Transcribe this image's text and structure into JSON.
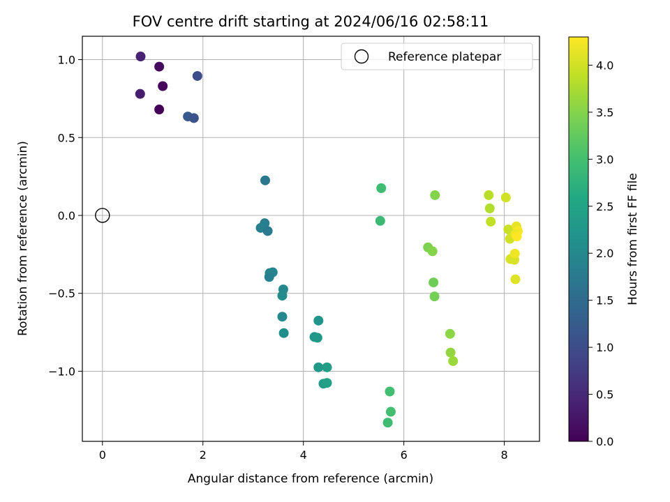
{
  "chart_data": {
    "type": "scatter",
    "title": "FOV centre drift starting at 2024/06/16 02:58:11",
    "xlabel": "Angular distance from reference (arcmin)",
    "ylabel": "Rotation from reference (arcmin)",
    "xlim": [
      -0.4,
      8.7
    ],
    "ylim": [
      -1.45,
      1.15
    ],
    "xticks": [
      0,
      2,
      4,
      6,
      8
    ],
    "yticks": [
      1.0,
      0.5,
      0.0,
      -0.5,
      -1.0
    ],
    "xtick_labels": [
      "0",
      "2",
      "4",
      "6",
      "8"
    ],
    "ytick_labels": [
      "1.0",
      "0.5",
      "0.0",
      "−0.5",
      "−1.0"
    ],
    "grid": true,
    "legend": {
      "placement": "upper-right",
      "entries": [
        "Reference platepar"
      ]
    },
    "reference_point": {
      "x": 0.0,
      "y": 0.0,
      "label": "Reference platepar"
    },
    "colorbar": {
      "label": "Hours from first FF file",
      "colormap": "viridis",
      "range": [
        0.0,
        4.3
      ],
      "ticks": [
        0.0,
        0.5,
        1.0,
        1.5,
        2.0,
        2.5,
        3.0,
        3.5,
        4.0
      ],
      "tick_labels": [
        "0.0",
        "0.5",
        "1.0",
        "1.5",
        "2.0",
        "2.5",
        "3.0",
        "3.5",
        "4.0"
      ]
    },
    "points": [
      {
        "x": 0.76,
        "y": 1.02,
        "hours": 0.4
      },
      {
        "x": 1.13,
        "y": 0.955,
        "hours": 0.12
      },
      {
        "x": 1.2,
        "y": 0.83,
        "hours": 0.08
      },
      {
        "x": 0.75,
        "y": 0.78,
        "hours": 0.35
      },
      {
        "x": 1.13,
        "y": 0.68,
        "hours": 0.02
      },
      {
        "x": 1.89,
        "y": 0.895,
        "hours": 1.0
      },
      {
        "x": 1.7,
        "y": 0.635,
        "hours": 1.2
      },
      {
        "x": 1.82,
        "y": 0.625,
        "hours": 1.1
      },
      {
        "x": 3.24,
        "y": 0.225,
        "hours": 1.7
      },
      {
        "x": 3.23,
        "y": -0.05,
        "hours": 1.8
      },
      {
        "x": 3.15,
        "y": -0.08,
        "hours": 1.85
      },
      {
        "x": 3.29,
        "y": -0.1,
        "hours": 1.75
      },
      {
        "x": 3.33,
        "y": -0.37,
        "hours": 1.9
      },
      {
        "x": 3.39,
        "y": -0.365,
        "hours": 1.95
      },
      {
        "x": 3.32,
        "y": -0.395,
        "hours": 1.85
      },
      {
        "x": 3.6,
        "y": -0.475,
        "hours": 2.0
      },
      {
        "x": 3.58,
        "y": -0.515,
        "hours": 2.05
      },
      {
        "x": 3.58,
        "y": -0.65,
        "hours": 2.0
      },
      {
        "x": 3.61,
        "y": -0.755,
        "hours": 2.1
      },
      {
        "x": 4.3,
        "y": -0.675,
        "hours": 2.2
      },
      {
        "x": 4.22,
        "y": -0.78,
        "hours": 2.25
      },
      {
        "x": 4.28,
        "y": -0.785,
        "hours": 2.3
      },
      {
        "x": 4.3,
        "y": -0.975,
        "hours": 2.3
      },
      {
        "x": 4.47,
        "y": -0.975,
        "hours": 2.4
      },
      {
        "x": 4.4,
        "y": -1.08,
        "hours": 2.35
      },
      {
        "x": 4.47,
        "y": -1.075,
        "hours": 2.45
      },
      {
        "x": 5.55,
        "y": 0.175,
        "hours": 2.95
      },
      {
        "x": 5.53,
        "y": -0.035,
        "hours": 2.9
      },
      {
        "x": 5.72,
        "y": -1.13,
        "hours": 3.0
      },
      {
        "x": 5.74,
        "y": -1.26,
        "hours": 3.0
      },
      {
        "x": 5.68,
        "y": -1.33,
        "hours": 2.95
      },
      {
        "x": 6.62,
        "y": 0.13,
        "hours": 3.5
      },
      {
        "x": 6.48,
        "y": -0.205,
        "hours": 3.45
      },
      {
        "x": 6.57,
        "y": -0.23,
        "hours": 3.5
      },
      {
        "x": 6.59,
        "y": -0.43,
        "hours": 3.35
      },
      {
        "x": 6.61,
        "y": -0.52,
        "hours": 3.4
      },
      {
        "x": 6.92,
        "y": -0.76,
        "hours": 3.55
      },
      {
        "x": 6.93,
        "y": -0.88,
        "hours": 3.6
      },
      {
        "x": 6.98,
        "y": -0.935,
        "hours": 3.65
      },
      {
        "x": 7.69,
        "y": 0.13,
        "hours": 3.85
      },
      {
        "x": 7.71,
        "y": 0.045,
        "hours": 3.8
      },
      {
        "x": 7.73,
        "y": -0.04,
        "hours": 3.9
      },
      {
        "x": 8.03,
        "y": 0.115,
        "hours": 4.0
      },
      {
        "x": 8.08,
        "y": -0.09,
        "hours": 3.95
      },
      {
        "x": 8.11,
        "y": -0.15,
        "hours": 4.0
      },
      {
        "x": 8.12,
        "y": -0.28,
        "hours": 4.05
      },
      {
        "x": 8.2,
        "y": -0.285,
        "hours": 4.05
      },
      {
        "x": 8.24,
        "y": -0.07,
        "hours": 4.15
      },
      {
        "x": 8.27,
        "y": -0.1,
        "hours": 4.25
      },
      {
        "x": 8.22,
        "y": -0.12,
        "hours": 4.2
      },
      {
        "x": 8.25,
        "y": -0.135,
        "hours": 4.3
      },
      {
        "x": 8.21,
        "y": -0.245,
        "hours": 4.2
      },
      {
        "x": 8.22,
        "y": -0.41,
        "hours": 4.1
      }
    ]
  }
}
